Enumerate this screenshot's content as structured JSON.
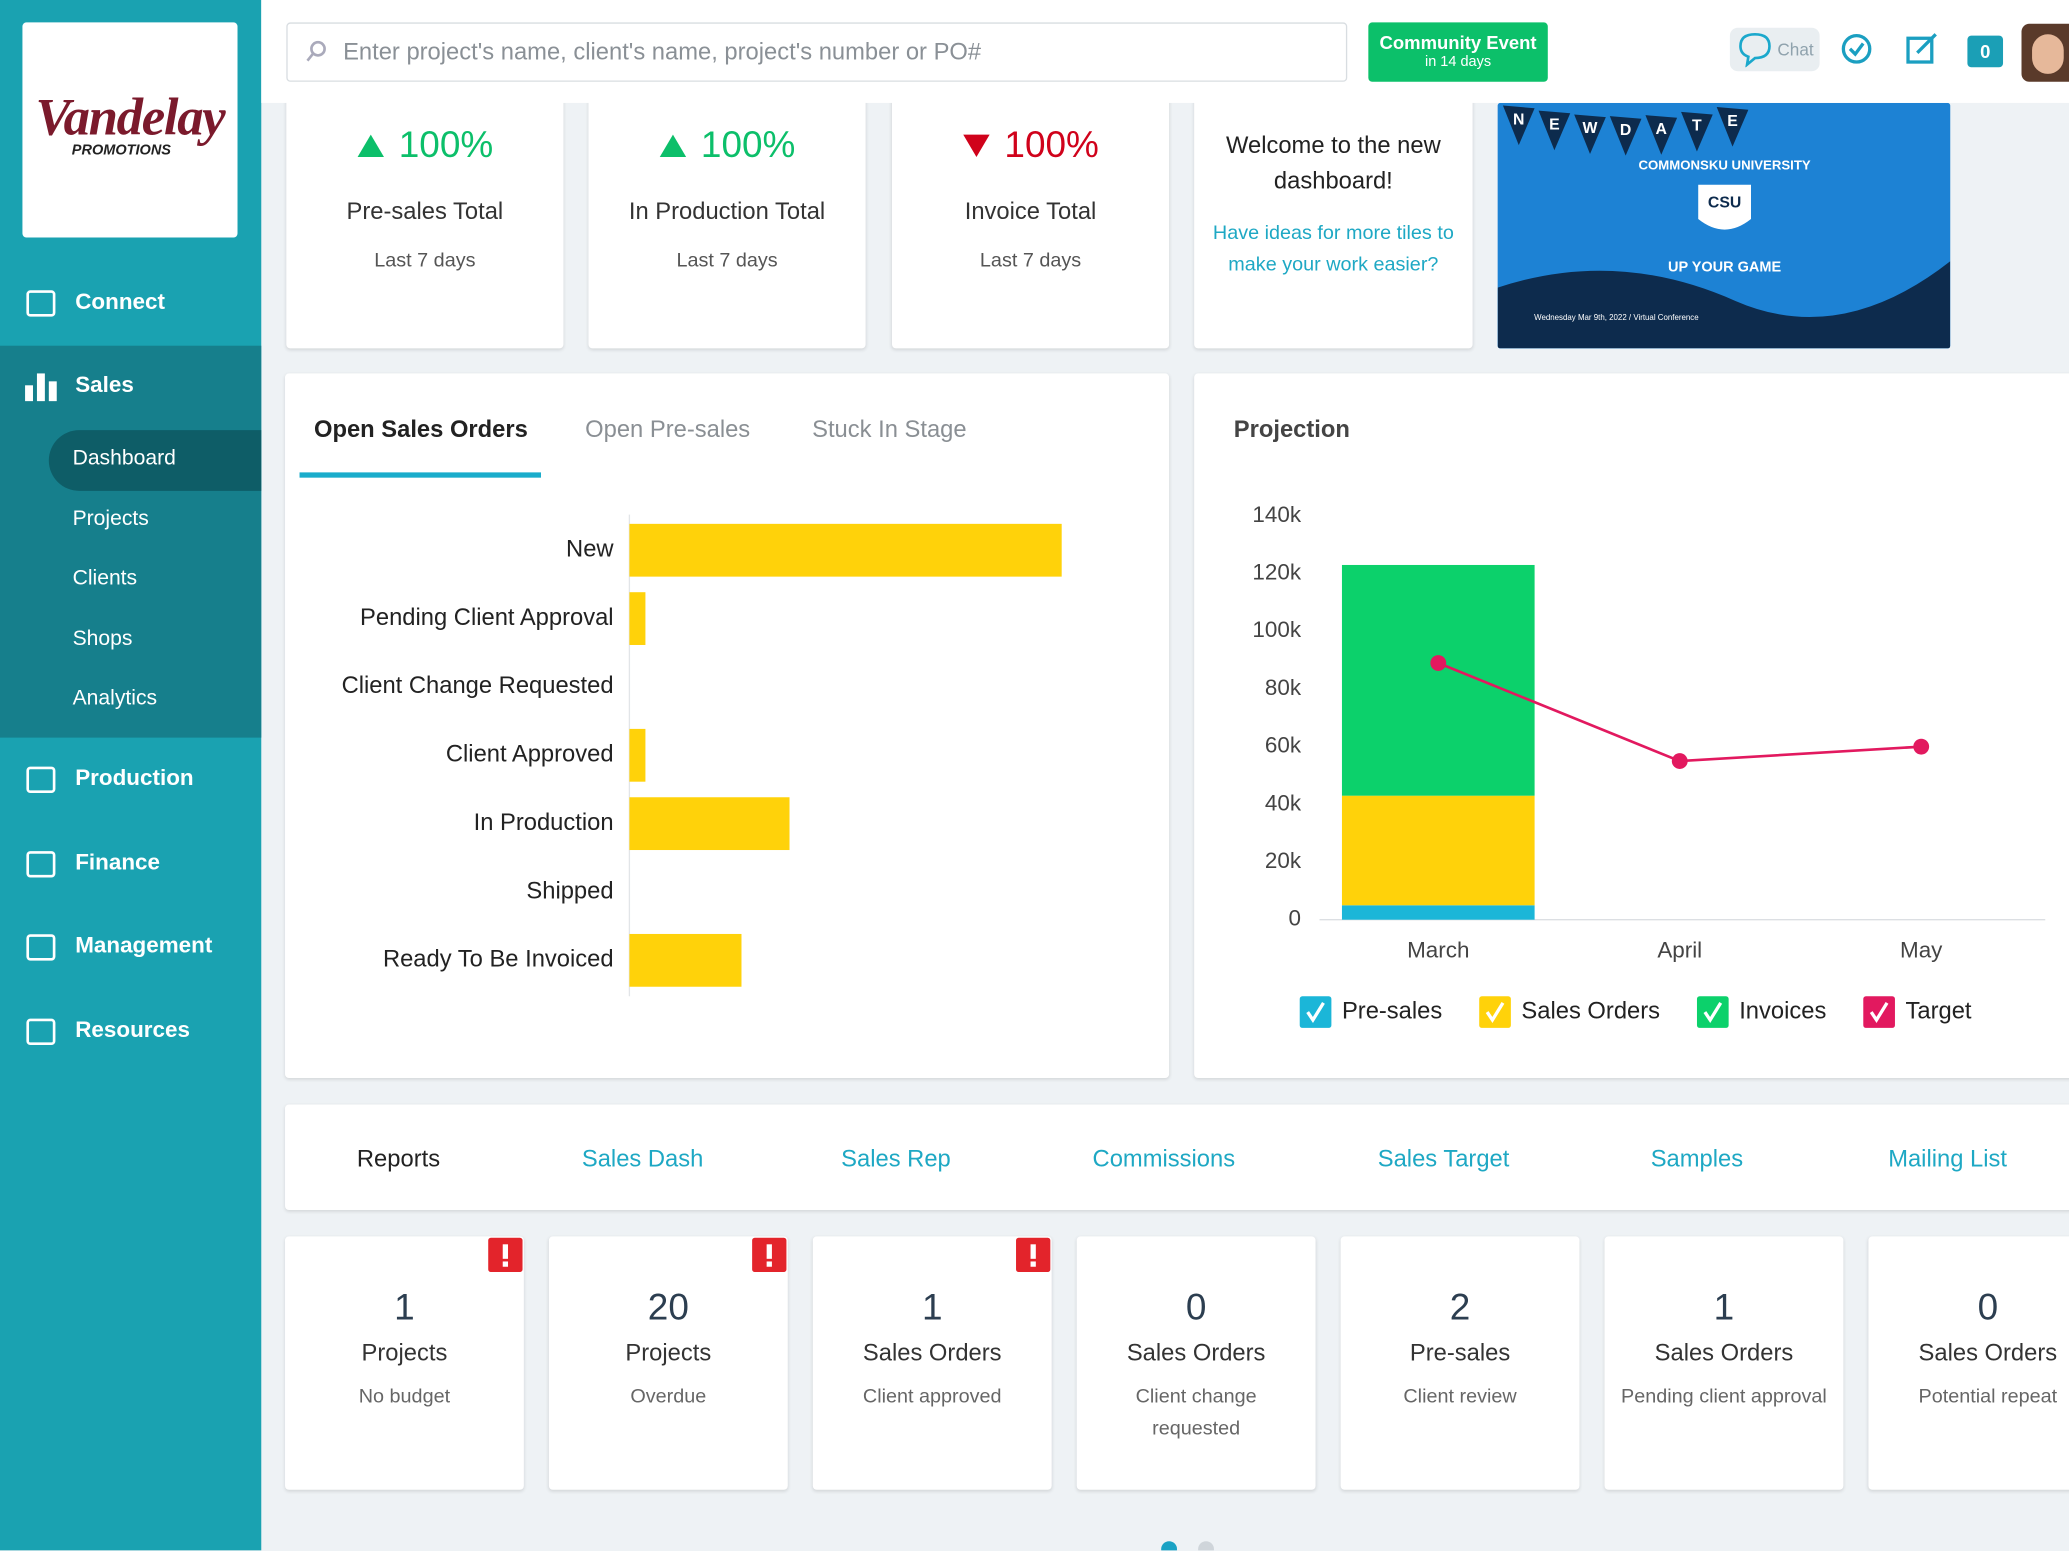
{
  "logo": {
    "name": "Vandelay",
    "tagline": "PROMOTIONS"
  },
  "sidebar": {
    "items": [
      {
        "label": "Connect"
      },
      {
        "label": "Sales",
        "children": [
          "Dashboard",
          "Projects",
          "Clients",
          "Shops",
          "Analytics"
        ],
        "active_child": 0
      },
      {
        "label": "Production"
      },
      {
        "label": "Finance"
      },
      {
        "label": "Management"
      },
      {
        "label": "Resources"
      }
    ]
  },
  "header": {
    "search_placeholder": "Enter project's name, client's name, project's number or PO#",
    "event": {
      "title": "Community Event",
      "subtitle": "in 14 days"
    },
    "chat": "Chat",
    "badge": 0
  },
  "stat_tiles": [
    {
      "value": "100%",
      "direction": "up",
      "label": "Pre-sales Total",
      "period": "Last 7 days"
    },
    {
      "value": "100%",
      "direction": "up",
      "label": "In Production Total",
      "period": "Last 7 days"
    },
    {
      "value": "100%",
      "direction": "down",
      "label": "Invoice Total",
      "period": "Last 7 days"
    }
  ],
  "welcome": {
    "title": "Welcome to the new dashboard!",
    "link": "Have ideas for more tiles to make your work easier?"
  },
  "banner": {
    "flags": [
      "N",
      "E",
      "W",
      "D",
      "A",
      "T",
      "E"
    ],
    "title": "COMMONSKU UNIVERSITY",
    "badge": "CSU",
    "slogan": "UP YOUR GAME",
    "footer": "Wednesday Mar 9th, 2022 / Virtual Conference"
  },
  "orders_panel": {
    "tabs": [
      "Open Sales Orders",
      "Open Pre-sales",
      "Stuck In Stage"
    ],
    "active_tab": 0
  },
  "projection_panel": {
    "title": "Projection"
  },
  "chart_data": [
    {
      "type": "bar",
      "orientation": "horizontal",
      "categories": [
        "New",
        "Pending Client Approval",
        "Client Change Requested",
        "Client Approved",
        "In Production",
        "Shipped",
        "Ready To Be Invoiced"
      ],
      "values": [
        27,
        1,
        0,
        1,
        10,
        0,
        7
      ],
      "color": "#ffd20a",
      "xlim": [
        0,
        30
      ]
    },
    {
      "type": "combo",
      "stacked": true,
      "grid": false,
      "legend": "bottom",
      "categories": [
        "March",
        "April",
        "May"
      ],
      "series": [
        {
          "name": "Pre-sales",
          "type": "bar",
          "color": "#1bb6d8",
          "values": [
            5000,
            0,
            0
          ]
        },
        {
          "name": "Sales Orders",
          "type": "bar",
          "color": "#ffd20a",
          "values": [
            38000,
            0,
            0
          ]
        },
        {
          "name": "Invoices",
          "type": "bar",
          "color": "#0cd16b",
          "values": [
            80000,
            0,
            0
          ]
        },
        {
          "name": "Target",
          "type": "line",
          "color": "#e2195f",
          "values": [
            89000,
            55000,
            60000
          ]
        }
      ],
      "ylim": [
        0,
        140000
      ],
      "yticks": [
        0,
        {
          "value": 20000,
          "label": "20k"
        },
        {
          "value": 40000,
          "label": "40k"
        },
        {
          "value": 60000,
          "label": "60k"
        },
        {
          "value": 80000,
          "label": "80k"
        },
        {
          "value": 100000,
          "label": "100k"
        },
        {
          "value": 120000,
          "label": "120k"
        },
        {
          "value": 140000,
          "label": "140k"
        }
      ]
    }
  ],
  "reports": {
    "title": "Reports",
    "links": [
      "Sales Dash",
      "Sales Rep",
      "Commissions",
      "Sales Target",
      "Samples",
      "Mailing List"
    ]
  },
  "summary_tiles": [
    {
      "count": 1,
      "title": "Projects",
      "subtitle": "No budget",
      "alert": true
    },
    {
      "count": 20,
      "title": "Projects",
      "subtitle": "Overdue",
      "alert": true
    },
    {
      "count": 1,
      "title": "Sales Orders",
      "subtitle": "Client approved",
      "alert": true
    },
    {
      "count": 0,
      "title": "Sales Orders",
      "subtitle": "Client change requested",
      "alert": false
    },
    {
      "count": 2,
      "title": "Pre-sales",
      "subtitle": "Client review",
      "alert": false
    },
    {
      "count": 1,
      "title": "Sales Orders",
      "subtitle": "Pending client approval",
      "alert": false
    },
    {
      "count": 0,
      "title": "Sales Orders",
      "subtitle": "Potential repeat",
      "alert": false
    }
  ]
}
